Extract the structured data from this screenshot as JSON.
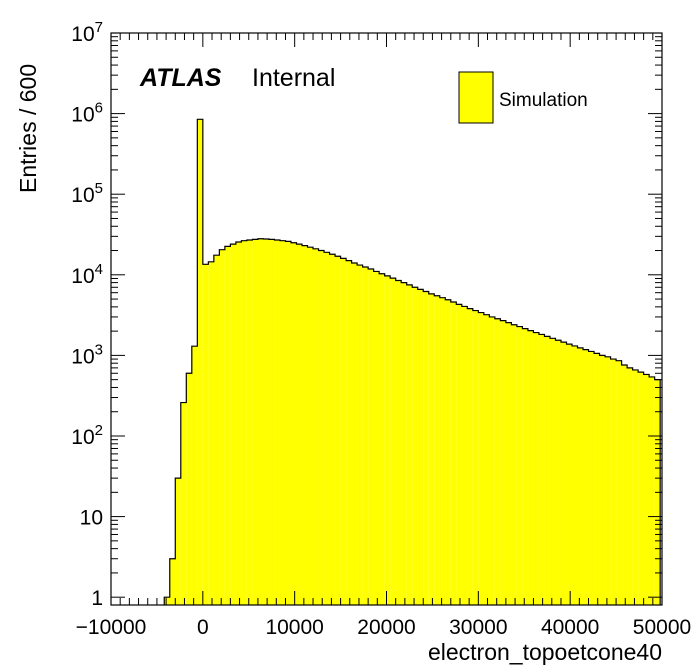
{
  "chart_data": {
    "type": "bar",
    "subtype": "histogram",
    "xlabel": "electron_topoetcone40",
    "ylabel": "Entries / 600",
    "xlim": [
      -10000,
      50000
    ],
    "ylim": [
      0.8,
      10000000
    ],
    "y_scale": "log",
    "bin_width": 600,
    "fill_color": "#ffff00",
    "line_color": "#000000",
    "grid": false,
    "x_ticks": [
      -10000,
      0,
      10000,
      20000,
      30000,
      40000,
      50000
    ],
    "x_tick_labels": [
      "−10000",
      "0",
      "10000",
      "20000",
      "30000",
      "40000",
      "50000"
    ],
    "y_ticks": [
      {
        "value": 1,
        "base": "1",
        "exp": ""
      },
      {
        "value": 10,
        "base": "10",
        "exp": ""
      },
      {
        "value": 100,
        "base": "10",
        "exp": "2"
      },
      {
        "value": 1000,
        "base": "10",
        "exp": "3"
      },
      {
        "value": 10000,
        "base": "10",
        "exp": "4"
      },
      {
        "value": 100000,
        "base": "10",
        "exp": "5"
      },
      {
        "value": 1000000,
        "base": "10",
        "exp": "6"
      },
      {
        "value": 10000000,
        "base": "10",
        "exp": "7"
      }
    ],
    "series": [
      {
        "name": "Simulation",
        "bin_edges_start": -4200,
        "values": [
          1,
          3,
          30,
          260,
          600,
          1300,
          850000,
          13500,
          14500,
          17500,
          20500,
          22500,
          24000,
          25500,
          26500,
          27000,
          27500,
          28000,
          27800,
          27500,
          27000,
          26500,
          26000,
          25000,
          24000,
          23000,
          22000,
          21000,
          20000,
          19000,
          18000,
          17000,
          16000,
          15000,
          14000,
          13200,
          12500,
          11800,
          11000,
          10300,
          9700,
          9100,
          8500,
          8000,
          7500,
          7000,
          6600,
          6200,
          5800,
          5500,
          5200,
          4900,
          4600,
          4300,
          4050,
          3800,
          3600,
          3400,
          3200,
          3000,
          2850,
          2700,
          2550,
          2400,
          2280,
          2150,
          2030,
          1920,
          1820,
          1720,
          1630,
          1540,
          1460,
          1380,
          1310,
          1240,
          1180,
          1120,
          1060,
          1000,
          960,
          900,
          860,
          760,
          700,
          660,
          620,
          580,
          540,
          500
        ]
      }
    ],
    "annotations": {
      "experiment": "ATLAS",
      "status": "Internal"
    },
    "legend": {
      "position": "top-right",
      "entries": [
        "Simulation"
      ]
    }
  }
}
